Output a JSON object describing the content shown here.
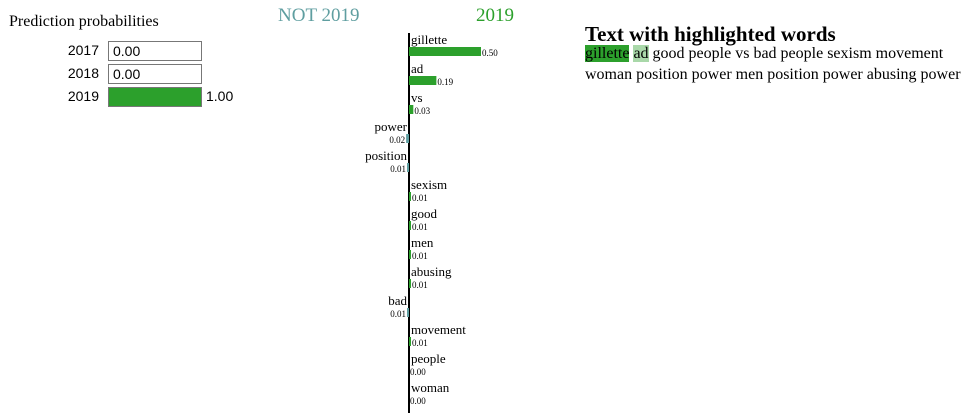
{
  "prediction_probabilities": {
    "title": "Prediction probabilities",
    "classes": [
      {
        "label": "2017",
        "value": 0.0,
        "text": "0.00"
      },
      {
        "label": "2018",
        "value": 0.0,
        "text": "0.00"
      },
      {
        "label": "2019",
        "value": 1.0,
        "text": "1.00"
      }
    ],
    "fill_color": "#2ca02c"
  },
  "explanation": {
    "negative_label": "NOT 2019",
    "positive_label": "2019",
    "negative_color": "#5f9ea0",
    "positive_color": "#2ca02c"
  },
  "chart_data": {
    "type": "bar",
    "orientation": "horizontal",
    "categories": [
      "gillette",
      "ad",
      "vs",
      "power",
      "position",
      "sexism",
      "good",
      "men",
      "abusing",
      "bad",
      "movement",
      "people",
      "woman"
    ],
    "values": [
      0.5,
      0.19,
      0.03,
      -0.02,
      -0.01,
      0.01,
      0.01,
      0.01,
      0.01,
      -0.01,
      0.01,
      0.0,
      0.0
    ],
    "value_labels": [
      "0.50",
      "0.19",
      "0.03",
      "0.02",
      "0.01",
      "0.01",
      "0.01",
      "0.01",
      "0.01",
      "0.01",
      "0.01",
      "0.00",
      "0.00"
    ],
    "xlabel": "",
    "ylabel": ""
  },
  "highlighted_text": {
    "title": "Text with highlighted words",
    "words": [
      {
        "text": "gillette",
        "highlight": "#2ca02c"
      },
      {
        "text": "ad",
        "highlight": "#a9d8a9"
      },
      {
        "text": "good",
        "highlight": ""
      },
      {
        "text": "people",
        "highlight": ""
      },
      {
        "text": "vs",
        "highlight": ""
      },
      {
        "text": "bad",
        "highlight": ""
      },
      {
        "text": "people",
        "highlight": ""
      },
      {
        "text": "sexism",
        "highlight": ""
      },
      {
        "text": "movement",
        "highlight": ""
      },
      {
        "text": "woman",
        "highlight": ""
      },
      {
        "text": "position",
        "highlight": ""
      },
      {
        "text": "power",
        "highlight": ""
      },
      {
        "text": "men",
        "highlight": ""
      },
      {
        "text": "position",
        "highlight": ""
      },
      {
        "text": "power",
        "highlight": ""
      },
      {
        "text": "abusing",
        "highlight": ""
      },
      {
        "text": "power",
        "highlight": ""
      }
    ]
  }
}
